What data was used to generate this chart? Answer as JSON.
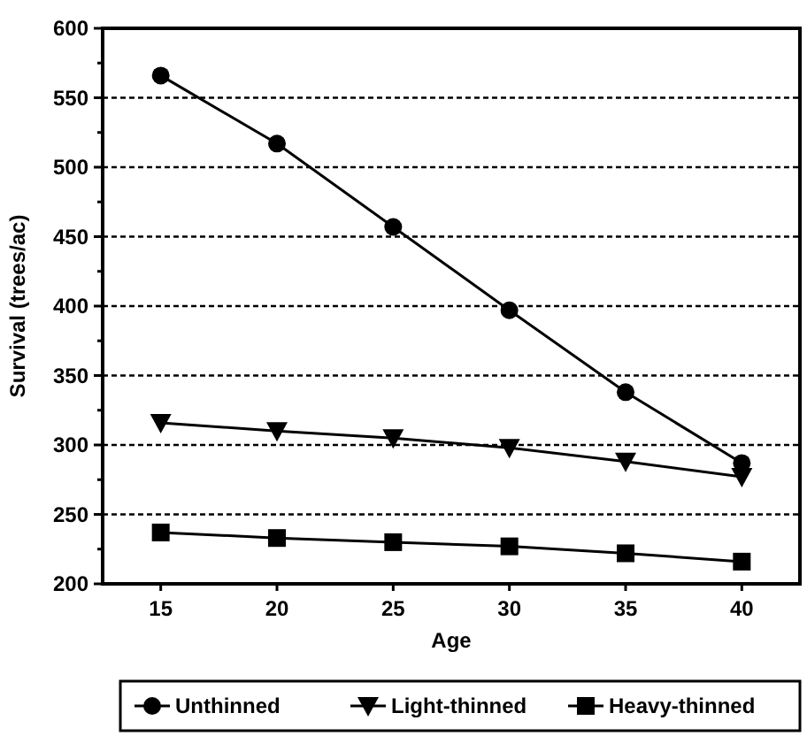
{
  "chart_data": {
    "type": "line",
    "xlabel": "Age",
    "ylabel": "Survival (trees/ac)",
    "categories": [
      "15",
      "20",
      "25",
      "30",
      "35",
      "40"
    ],
    "series": [
      {
        "name": "Unthinned",
        "color": "#000000",
        "marker": "circle",
        "values": [
          566,
          517,
          457,
          397,
          338,
          287
        ]
      },
      {
        "name": "Light-thinned",
        "color": "#000000",
        "marker": "triangle",
        "values": [
          316,
          310,
          305,
          298,
          288,
          277
        ]
      },
      {
        "name": "Heavy-thinned",
        "color": "#000000",
        "marker": "square",
        "values": [
          237,
          233,
          230,
          227,
          222,
          216
        ]
      }
    ],
    "ylim": [
      200,
      600
    ],
    "yticks": [
      200,
      {
        "value": 225,
        "label": null
      },
      250,
      {
        "value": 275,
        "label": null
      },
      300,
      {
        "value": 325,
        "label": null
      },
      350,
      {
        "value": 375,
        "label": null
      },
      400,
      {
        "value": 425,
        "label": null
      },
      450,
      {
        "value": 475,
        "label": null
      },
      500,
      {
        "value": 525,
        "label": null
      },
      550,
      {
        "value": 575,
        "label": null
      },
      600
    ],
    "grid": "y",
    "legend": "bottom",
    "line_style": "solid"
  }
}
